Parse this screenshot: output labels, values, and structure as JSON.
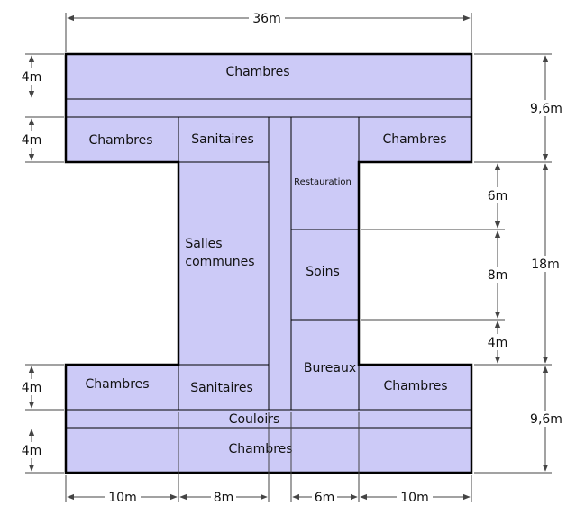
{
  "rooms": {
    "top_chambres": "Chambres",
    "left_top_chambres": "Chambres",
    "left_top_sanitaires": "Sanitaires",
    "restauration": "Restauration",
    "right_top_chambres": "Chambres",
    "salles_communes_1": "Salles",
    "salles_communes_2": "communes",
    "soins": "Soins",
    "bureaux": "Bureaux",
    "left_bottom_chambres": "Chambres",
    "left_bottom_sanitaires": "Sanitaires",
    "right_bottom_chambres": "Chambres",
    "couloirs": "Couloirs",
    "bottom_chambres": "Chambres"
  },
  "dimensions": {
    "total_width": "36m",
    "left_top_4m_a": "4m",
    "left_top_4m_b": "4m",
    "left_bottom_4m_a": "4m",
    "left_bottom_4m_b": "4m",
    "right_top_9_6m": "9,6m",
    "right_6m": "6m",
    "right_8m": "8m",
    "right_4m": "4m",
    "right_18m": "18m",
    "right_bottom_9_6m": "9,6m",
    "bottom_10m_left": "10m",
    "bottom_8m": "8m",
    "bottom_6m": "6m",
    "bottom_10m_right": "10m"
  },
  "colors": {
    "room_fill": "#cccaf7",
    "outline": "#000000",
    "dimension_line": "#444444"
  }
}
